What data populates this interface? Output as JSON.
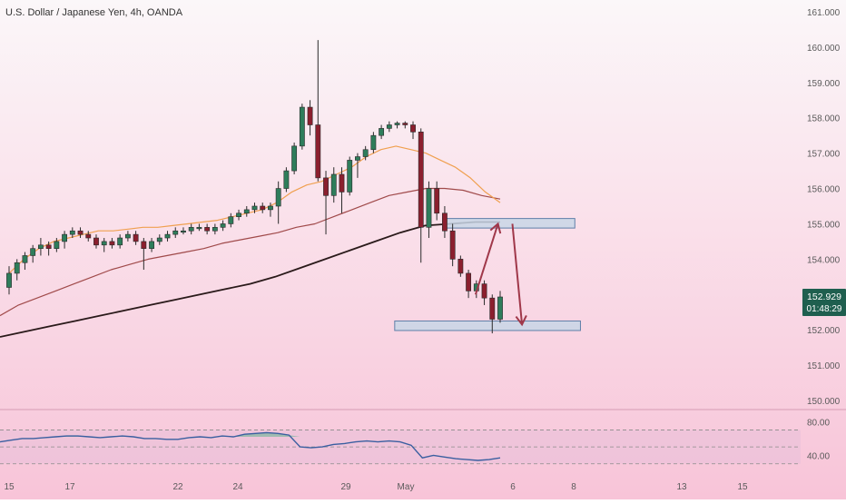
{
  "chart_data": {
    "type": "candlestick",
    "title": "U.S. Dollar / Japanese Yen, 4h, OANDA",
    "colors": {
      "bull": "#2e7d5b",
      "bear": "#8b1f2e",
      "ema_fast": "#f0a050",
      "ema_mid": "#a04a4a",
      "ema_slow": "#2a1a1a",
      "zone_fill": "#c8d6e6",
      "zone_stroke": "#5f7fa8",
      "arrow": "#a0384a",
      "rsi_line": "#3a5fa0",
      "rsi_fill": "#7fb8a0",
      "last_price_bg": "#1f5f4f"
    },
    "price_axis": {
      "ticks": [
        "161.000",
        "160.000",
        "159.000",
        "158.000",
        "157.000",
        "156.000",
        "155.000",
        "154.000",
        "153.000",
        "152.000",
        "151.000",
        "150.000"
      ],
      "ylim": [
        150,
        161
      ]
    },
    "time_axis": {
      "labels": [
        "15",
        "17",
        "22",
        "24",
        "29",
        "May",
        "6",
        "8",
        "13",
        "15"
      ]
    },
    "last_price": {
      "price": "152.929",
      "countdown": "01:48:29",
      "value": 152.929
    },
    "candles": [
      [
        153.2,
        153.8,
        153.0,
        153.6
      ],
      [
        153.6,
        154.0,
        153.4,
        153.9
      ],
      [
        153.9,
        154.2,
        153.7,
        154.1
      ],
      [
        154.1,
        154.4,
        153.9,
        154.3
      ],
      [
        154.3,
        154.6,
        154.1,
        154.4
      ],
      [
        154.4,
        154.5,
        154.1,
        154.3
      ],
      [
        154.3,
        154.6,
        154.2,
        154.5
      ],
      [
        154.5,
        154.8,
        154.3,
        154.7
      ],
      [
        154.7,
        154.9,
        154.6,
        154.8
      ],
      [
        154.8,
        154.9,
        154.6,
        154.7
      ],
      [
        154.7,
        154.8,
        154.5,
        154.6
      ],
      [
        154.6,
        154.7,
        154.3,
        154.4
      ],
      [
        154.4,
        154.6,
        154.2,
        154.5
      ],
      [
        154.5,
        154.6,
        154.3,
        154.4
      ],
      [
        154.4,
        154.7,
        154.3,
        154.6
      ],
      [
        154.6,
        154.8,
        154.5,
        154.7
      ],
      [
        154.7,
        154.8,
        154.4,
        154.5
      ],
      [
        154.5,
        154.6,
        153.7,
        154.3
      ],
      [
        154.3,
        154.6,
        154.2,
        154.5
      ],
      [
        154.5,
        154.7,
        154.4,
        154.6
      ],
      [
        154.6,
        154.8,
        154.5,
        154.7
      ],
      [
        154.7,
        154.9,
        154.6,
        154.8
      ],
      [
        154.8,
        154.9,
        154.7,
        154.8
      ],
      [
        154.8,
        155.0,
        154.7,
        154.9
      ],
      [
        154.9,
        155.0,
        154.8,
        154.9
      ],
      [
        154.9,
        155.0,
        154.7,
        154.8
      ],
      [
        154.8,
        155.0,
        154.7,
        154.9
      ],
      [
        154.9,
        155.1,
        154.8,
        155.0
      ],
      [
        155.0,
        155.3,
        154.9,
        155.2
      ],
      [
        155.2,
        155.4,
        155.1,
        155.3
      ],
      [
        155.3,
        155.5,
        155.2,
        155.4
      ],
      [
        155.4,
        155.6,
        155.3,
        155.5
      ],
      [
        155.5,
        155.6,
        155.3,
        155.4
      ],
      [
        155.4,
        155.6,
        155.2,
        155.5
      ],
      [
        155.5,
        156.2,
        155.0,
        156.0
      ],
      [
        156.0,
        156.6,
        155.9,
        156.5
      ],
      [
        156.5,
        157.3,
        156.4,
        157.2
      ],
      [
        157.2,
        158.4,
        157.1,
        158.3
      ],
      [
        158.3,
        158.5,
        157.5,
        157.8
      ],
      [
        157.8,
        160.2,
        156.2,
        156.3
      ],
      [
        156.3,
        156.5,
        154.7,
        155.8
      ],
      [
        155.8,
        156.6,
        155.6,
        156.4
      ],
      [
        156.4,
        156.6,
        155.3,
        155.9
      ],
      [
        155.9,
        156.9,
        155.8,
        156.8
      ],
      [
        156.8,
        157.0,
        156.3,
        156.9
      ],
      [
        156.9,
        157.2,
        156.8,
        157.1
      ],
      [
        157.1,
        157.6,
        157.0,
        157.5
      ],
      [
        157.5,
        157.8,
        157.4,
        157.7
      ],
      [
        157.7,
        157.9,
        157.6,
        157.8
      ],
      [
        157.8,
        157.9,
        157.7,
        157.85
      ],
      [
        157.85,
        157.9,
        157.7,
        157.8
      ],
      [
        157.8,
        157.9,
        157.4,
        157.6
      ],
      [
        157.6,
        157.7,
        153.9,
        154.9
      ],
      [
        154.9,
        156.2,
        154.6,
        156.0
      ],
      [
        156.0,
        156.2,
        155.1,
        155.3
      ],
      [
        155.3,
        155.5,
        154.6,
        154.8
      ],
      [
        154.8,
        155.0,
        153.8,
        154.0
      ],
      [
        154.0,
        154.1,
        153.5,
        153.6
      ],
      [
        153.6,
        153.7,
        152.9,
        153.1
      ],
      [
        153.1,
        153.4,
        152.9,
        153.3
      ],
      [
        153.3,
        153.4,
        152.7,
        152.9
      ],
      [
        152.9,
        153.0,
        151.9,
        152.3
      ],
      [
        152.3,
        153.1,
        152.2,
        152.93
      ]
    ],
    "ema_fast": [
      153.6,
      154.0,
      154.3,
      154.5,
      154.6,
      154.7,
      154.8,
      154.8,
      154.85,
      154.9,
      154.9,
      154.95,
      155.0,
      155.05,
      155.1,
      155.2,
      155.3,
      155.4,
      155.6,
      155.9,
      156.1,
      156.2,
      156.4,
      156.6,
      156.9,
      157.1,
      157.2,
      157.1,
      157.0,
      156.8,
      156.6,
      156.3,
      155.9,
      155.6
    ],
    "ema_mid": [
      152.4,
      152.7,
      152.9,
      153.1,
      153.3,
      153.5,
      153.7,
      153.85,
      154.0,
      154.1,
      154.2,
      154.3,
      154.45,
      154.55,
      154.65,
      154.75,
      154.9,
      155.0,
      155.2,
      155.4,
      155.6,
      155.8,
      155.9,
      156.0,
      156.0,
      155.95,
      155.8,
      155.7
    ],
    "ema_slow": [
      151.8,
      151.95,
      152.1,
      152.25,
      152.4,
      152.55,
      152.7,
      152.85,
      153.0,
      153.15,
      153.3,
      153.5,
      153.75,
      154.0,
      154.25,
      154.5,
      154.75,
      154.95,
      155.0,
      155.05,
      155.05
    ],
    "zones": [
      {
        "name": "resistance-zone",
        "top": 155.15,
        "bottom": 154.88,
        "x0": 0.555,
        "x1": 0.718
      },
      {
        "name": "support-zone",
        "top": 152.25,
        "bottom": 151.98,
        "x0": 0.493,
        "x1": 0.725
      }
    ],
    "arrows": [
      {
        "name": "arrow-up",
        "from": [
          0.594,
          153.0
        ],
        "to": [
          0.622,
          155.0
        ]
      },
      {
        "name": "arrow-down",
        "from": [
          0.64,
          155.0
        ],
        "to": [
          0.652,
          152.15
        ]
      }
    ],
    "rsi": {
      "ticks": [
        "80.00",
        "40.00"
      ],
      "levels": [
        70,
        50,
        30
      ],
      "values": [
        56,
        58,
        60,
        60,
        61,
        62,
        63,
        63,
        62,
        61,
        62,
        63,
        62,
        60,
        60,
        59,
        59,
        61,
        62,
        61,
        63,
        62,
        65,
        66,
        67,
        66,
        64,
        50,
        49,
        50,
        53,
        54,
        56,
        57,
        56,
        57,
        56,
        52,
        37,
        40,
        38,
        36,
        35,
        34,
        35,
        37
      ]
    }
  }
}
